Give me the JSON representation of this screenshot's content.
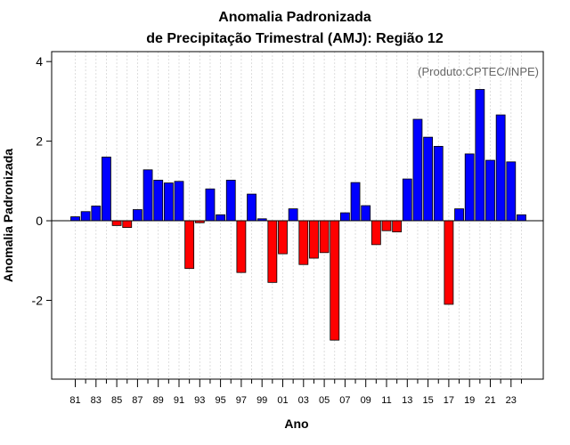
{
  "chart_data": {
    "type": "bar",
    "title": "Anomalia Padronizada",
    "subtitle": "de Precipitação Trimestral (AMJ): Região 12",
    "xlabel": "Ano",
    "ylabel": "Anomalia Padronizada",
    "annotation": "(Produto:CPTEC/INPE)",
    "ylim": [
      -3.98,
      4.25
    ],
    "yticks": [
      -2,
      0,
      2,
      4
    ],
    "grid": true,
    "colors": {
      "positive": "#0000ff",
      "negative": "#ff0000"
    },
    "categories": [
      "81",
      "82",
      "83",
      "84",
      "85",
      "86",
      "87",
      "88",
      "89",
      "90",
      "91",
      "92",
      "93",
      "94",
      "95",
      "96",
      "97",
      "98",
      "99",
      "00",
      "01",
      "02",
      "03",
      "04",
      "05",
      "06",
      "07",
      "08",
      "09",
      "10",
      "11",
      "12",
      "13",
      "14",
      "15",
      "16",
      "17",
      "18",
      "19",
      "20",
      "21",
      "22",
      "23",
      "24"
    ],
    "tick_labels": [
      "81",
      "83",
      "85",
      "87",
      "89",
      "91",
      "93",
      "95",
      "97",
      "99",
      "01",
      "03",
      "05",
      "07",
      "09",
      "11",
      "13",
      "15",
      "17",
      "19",
      "21",
      "23"
    ],
    "values": [
      0.1,
      0.23,
      0.37,
      1.6,
      -0.12,
      -0.17,
      0.28,
      1.28,
      1.02,
      0.95,
      0.99,
      -1.2,
      -0.05,
      0.8,
      0.15,
      1.02,
      -1.3,
      0.67,
      0.05,
      -1.55,
      -0.83,
      0.3,
      -1.1,
      -0.94,
      -0.8,
      -3.0,
      0.2,
      0.96,
      0.38,
      -0.6,
      -0.25,
      -0.28,
      1.05,
      2.55,
      2.1,
      1.87,
      -2.1,
      0.3,
      1.68,
      3.3,
      1.52,
      2.66,
      1.48,
      0.15
    ]
  }
}
